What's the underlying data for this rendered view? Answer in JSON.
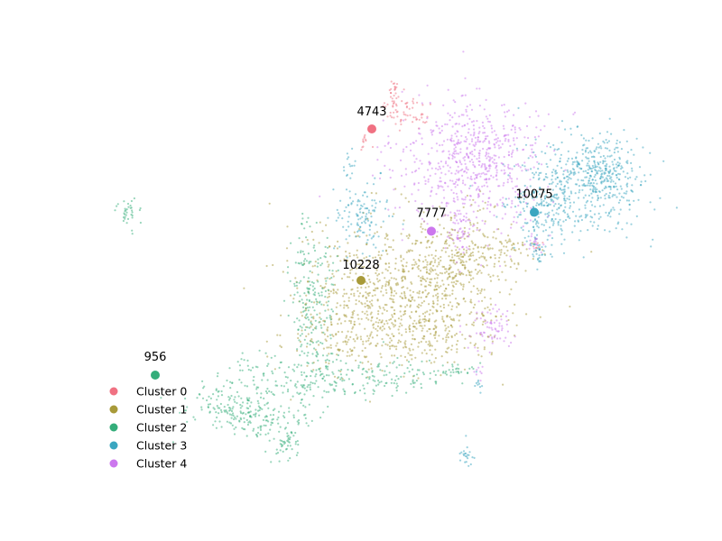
{
  "chart_data": {
    "type": "scatter",
    "title": "",
    "xlabel": "",
    "ylabel": "",
    "axes_visible": false,
    "grid": false,
    "legend": {
      "placement": "lower-left",
      "entries": [
        "Cluster 0",
        "Cluster 1",
        "Cluster 2",
        "Cluster 3",
        "Cluster 4"
      ]
    },
    "series": [
      {
        "name": "Cluster 0",
        "color": "#f07182",
        "representative": {
          "x": 0.52,
          "y": 0.85,
          "label": "4743"
        }
      },
      {
        "name": "Cluster 1",
        "color": "#a89a39",
        "representative": {
          "x": 0.5,
          "y": 0.45,
          "label": "10228"
        }
      },
      {
        "name": "Cluster 2",
        "color": "#34ad7a",
        "representative": {
          "x": 0.12,
          "y": 0.2,
          "label": "956"
        }
      },
      {
        "name": "Cluster 3",
        "color": "#3aa6c0",
        "representative": {
          "x": 0.82,
          "y": 0.63,
          "label": "10075"
        }
      },
      {
        "name": "Cluster 4",
        "color": "#cc77ee",
        "representative": {
          "x": 0.63,
          "y": 0.58,
          "label": "7777"
        }
      }
    ]
  }
}
